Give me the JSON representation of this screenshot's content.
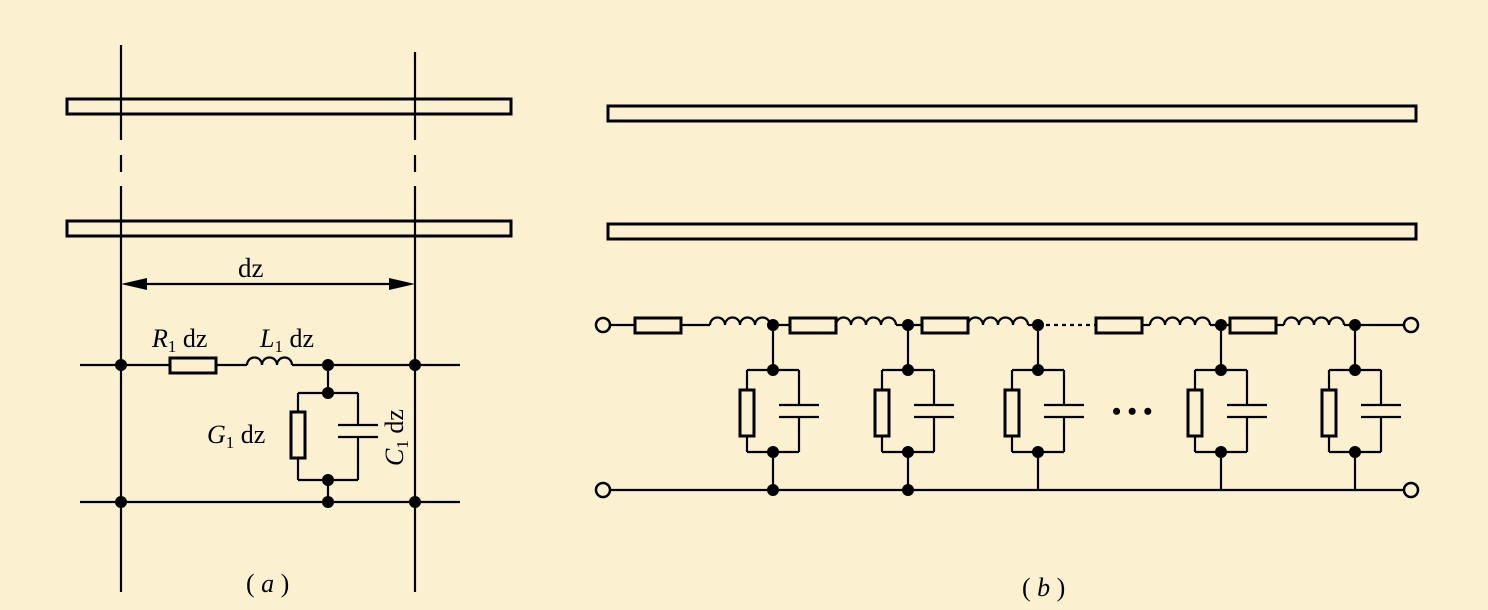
{
  "figure_a": {
    "dim_label": "dz",
    "r_symbol": "R",
    "r_subscript": "1",
    "r_unit": " dz",
    "l_symbol": "L",
    "l_subscript": "1",
    "l_unit": " dz",
    "g_symbol": "G",
    "g_subscript": "1",
    "g_unit": " dz",
    "c_symbol": "C",
    "c_subscript": "1",
    "c_unit": " dz",
    "caption_open": "( ",
    "caption_letter": "a",
    "caption_close": " )"
  },
  "figure_b": {
    "ellipsis": "• • •",
    "caption_open": "( ",
    "caption_letter": "b",
    "caption_close": " )"
  }
}
